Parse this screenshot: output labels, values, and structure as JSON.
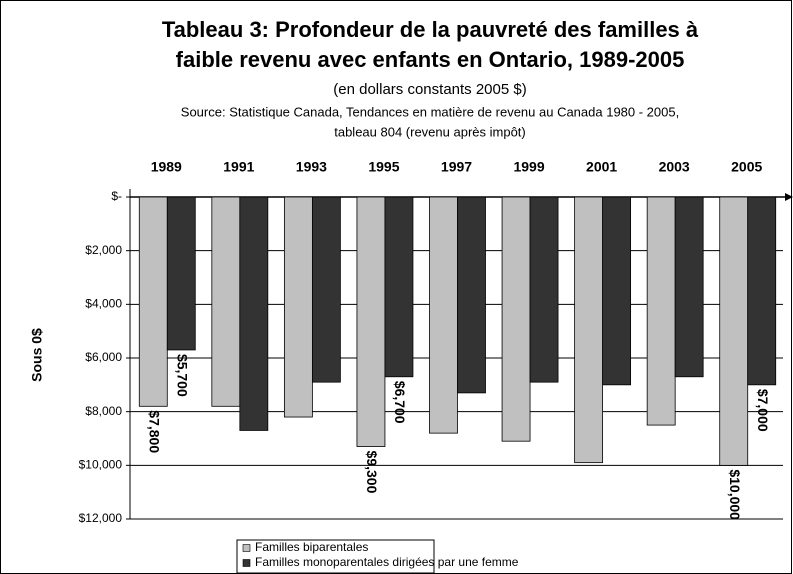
{
  "chart_data": {
    "type": "bar",
    "title": [
      "Tableau 3: Profondeur de la pauvreté des familles à",
      "faible revenu avec enfants en Ontario, 1989-2005"
    ],
    "subtitle": "(en dollars constants 2005 $)",
    "source": [
      "Source: Statistique Canada, Tendances en matière de revenu au Canada 1980 - 2005,",
      "tableau 804 (revenu après impôt)"
    ],
    "y_label": "Sous 0$",
    "categories": [
      "1989",
      "1991",
      "1993",
      "1995",
      "1997",
      "1999",
      "2001",
      "2003",
      "2005"
    ],
    "series": [
      {
        "name": "Familles biparentales",
        "color": "#c0c0c0",
        "values": [
          7800,
          7800,
          8200,
          9300,
          8800,
          9100,
          9900,
          8500,
          10000
        ],
        "value_labels": [
          "$7,800",
          null,
          null,
          "$9,300",
          null,
          null,
          null,
          null,
          "$10,000"
        ]
      },
      {
        "name": "Familles monoparentales dirigées par une femme",
        "color": "#333333",
        "values": [
          5700,
          8700,
          6900,
          6700,
          7300,
          6900,
          7000,
          6700,
          7000
        ],
        "value_labels": [
          "$5,700",
          null,
          null,
          "$6,700",
          null,
          null,
          null,
          null,
          "$7,000"
        ]
      }
    ],
    "ylim": [
      0,
      12000
    ],
    "inverted": true,
    "yticks": [
      {
        "value": 0,
        "label": "$-"
      },
      {
        "value": 2000,
        "label": "$2,000"
      },
      {
        "value": 4000,
        "label": "$4,000"
      },
      {
        "value": 6000,
        "label": "$6,000"
      },
      {
        "value": 8000,
        "label": "$8,000"
      },
      {
        "value": 10000,
        "label": "$10,000"
      },
      {
        "value": 12000,
        "label": "$12,000"
      }
    ],
    "grid": true,
    "legend": "bottom"
  }
}
